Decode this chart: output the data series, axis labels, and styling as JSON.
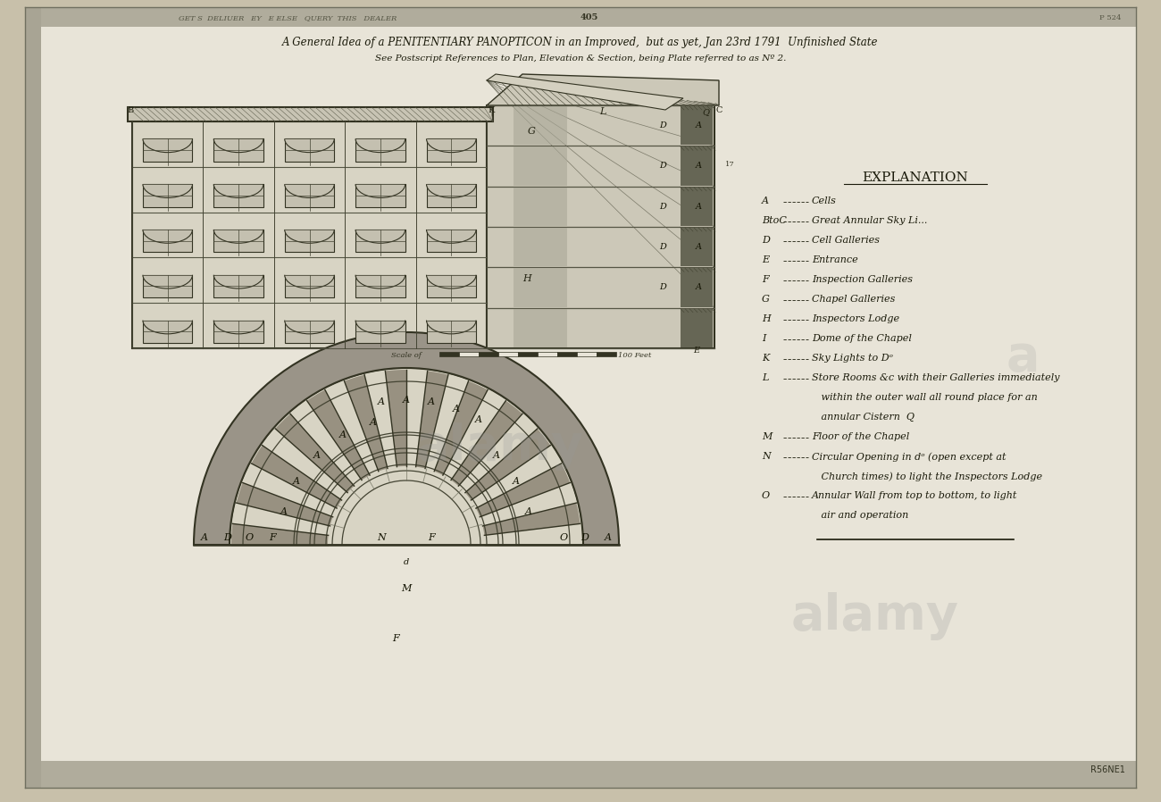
{
  "bg_color": "#d6cebc",
  "page_bg": "#c8c0aa",
  "inner_bg": "#e8e4d8",
  "title_line1": "A General Idea of a PENITENTIARY PANOPTICON in an Improved,  but as yet, Jan 23rd 1791  Unfinished State",
  "title_line2": "See Postscript References to Plan, Elevation & Section, being Plate referred to as Nº 2.",
  "explanation_title": "EXPLANATION",
  "explanation_items": [
    [
      "A",
      "Cells"
    ],
    [
      "BtoC",
      "Great Annular Sky Li..."
    ],
    [
      "D",
      "Cell Galleries"
    ],
    [
      "E",
      "Entrance"
    ],
    [
      "F",
      "Inspection Galleries"
    ],
    [
      "G",
      "Chapel Galleries"
    ],
    [
      "H",
      "Inspectors Lodge"
    ],
    [
      "I",
      "Dome of the Chapel"
    ],
    [
      "K",
      "Sky Lights to Dᵒ"
    ],
    [
      "L",
      "Store Rooms &c with their Galleries immediately"
    ],
    [
      "",
      "   within the outer wall all round place for an"
    ],
    [
      "",
      "   annular Cistern  Q"
    ],
    [
      "M",
      "Floor of the Chapel"
    ],
    [
      "N",
      "Circular Opening in dᵒ (open except at"
    ],
    [
      "",
      "   Church times) to light the Inspectors Lodge"
    ],
    [
      "O",
      "Annular Wall from top to bottom, to light"
    ],
    [
      "",
      "   air and operation"
    ]
  ],
  "watermark1": "alamy",
  "watermark2": "alamy",
  "watermark3": "a",
  "stock_code": "R56NE1",
  "catalog_top": "GET S  DELIUER   EY   E ELSE   QUERY  THIS   DEALER",
  "page_num_top": "P 524",
  "center_num_top": "405"
}
